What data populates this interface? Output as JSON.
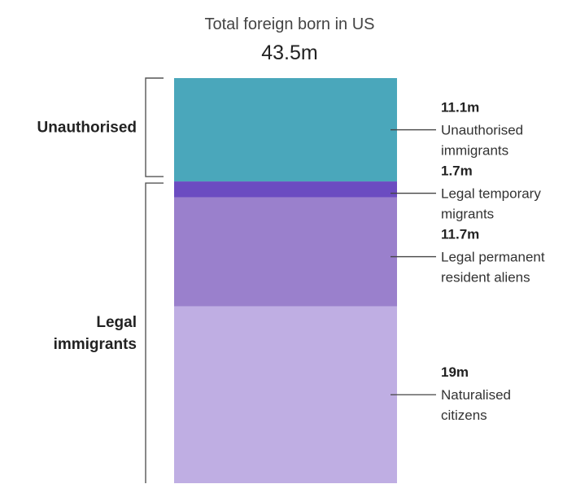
{
  "chart_data": {
    "type": "bar",
    "stacked": true,
    "title": "Total foreign born in US",
    "total_label": "43.5m",
    "total": 43.5,
    "unit": "m",
    "segments": [
      {
        "value": 11.1,
        "value_label": "11.1m",
        "category_lines": [
          "Unauthorised",
          "immigrants"
        ],
        "color": "#4aa7bb"
      },
      {
        "value": 1.7,
        "value_label": "1.7m",
        "category_lines": [
          "Legal temporary",
          "migrants"
        ],
        "color": "#6b4cc1"
      },
      {
        "value": 11.7,
        "value_label": "11.7m",
        "category_lines": [
          "Legal permanent",
          "resident aliens"
        ],
        "color": "#9a80cc"
      },
      {
        "value": 19,
        "value_label": "19m",
        "category_lines": [
          "Naturalised",
          "citizens"
        ],
        "color": "#bfaee3"
      }
    ],
    "groups": [
      {
        "label_lines": [
          "Unauthorised"
        ],
        "segments": [
          0
        ]
      },
      {
        "label_lines": [
          "Legal",
          "immigrants"
        ],
        "segments": [
          1,
          2,
          3
        ]
      }
    ]
  }
}
